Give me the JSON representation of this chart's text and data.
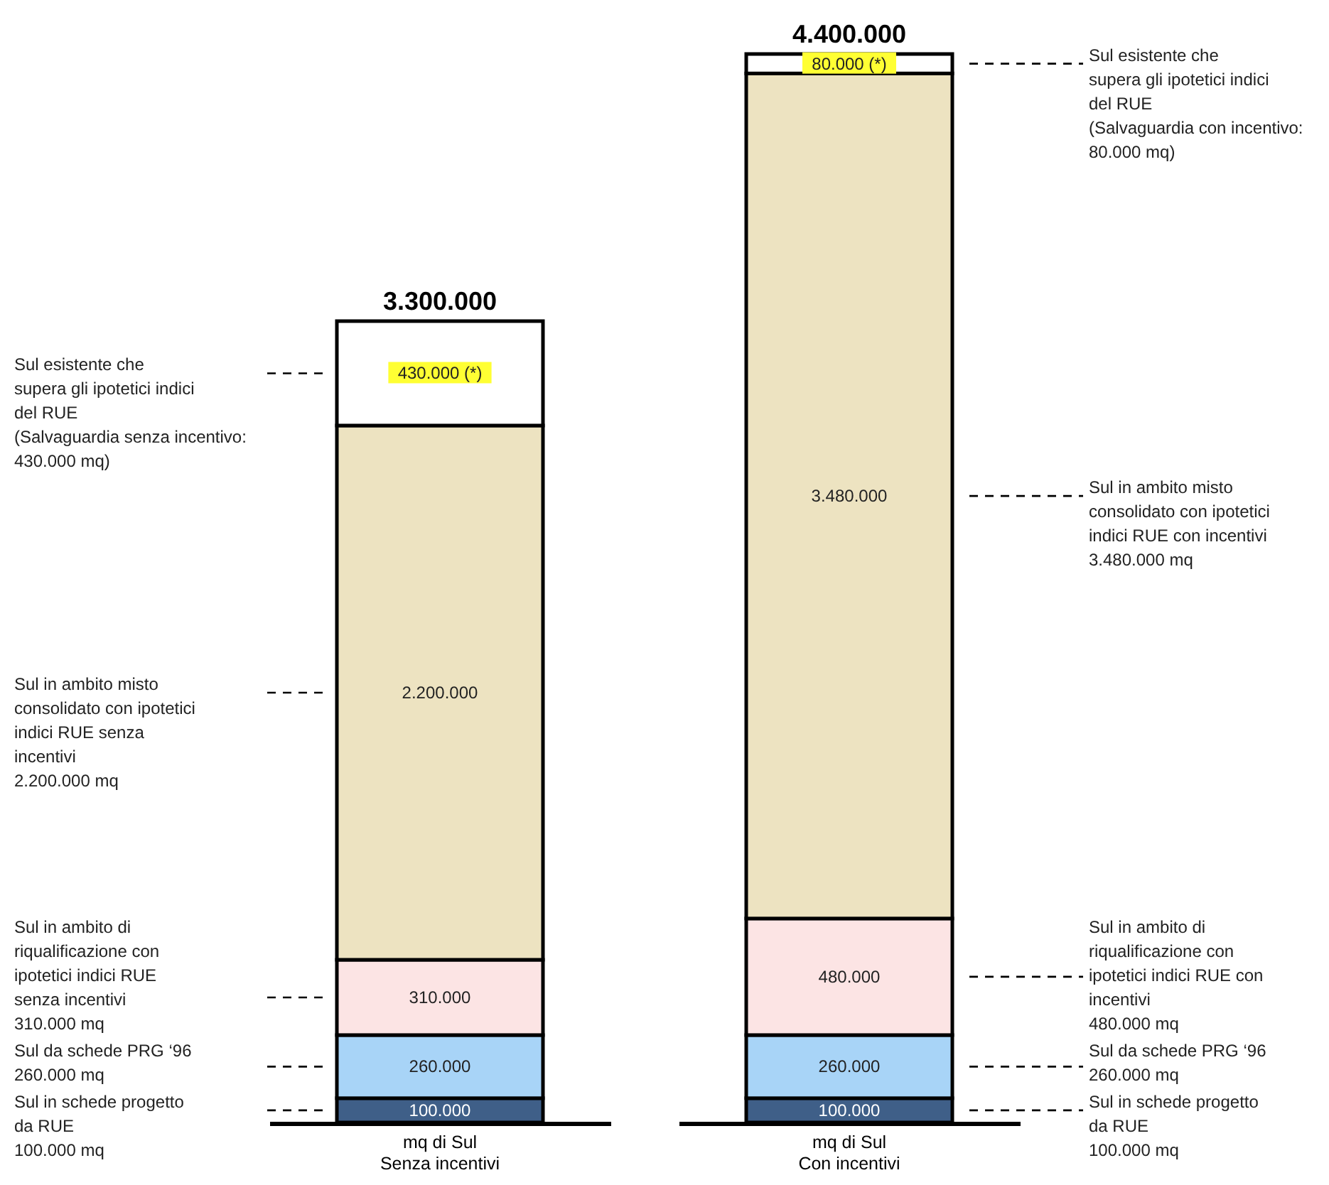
{
  "chart_data": {
    "type": "bar",
    "stacked": true,
    "categories": [
      "mq di Sul\nSenza incentivi",
      "mq di Sul\nCon incentivi"
    ],
    "series": [
      {
        "color": "#3f5f88",
        "values": [
          100000,
          100000
        ],
        "value_labels": [
          "100.000",
          "100.000"
        ]
      },
      {
        "color": "#a8d4f7",
        "values": [
          260000,
          260000
        ],
        "value_labels": [
          "260.000",
          "260.000"
        ]
      },
      {
        "color": "#fce4e4",
        "values": [
          310000,
          480000
        ],
        "value_labels": [
          "310.000",
          "480.000"
        ]
      },
      {
        "color": "#ede3c1",
        "values": [
          2200000,
          3480000
        ],
        "value_labels": [
          "2.200.000",
          "3.480.000"
        ]
      },
      {
        "color": "#ffffff",
        "values": [
          430000,
          80000
        ],
        "value_labels": [
          "430.000 (*)",
          "80.000 (*)"
        ]
      }
    ],
    "totals": [
      "3.300.000",
      "4.400.000"
    ],
    "annotations": [
      "Sul in schede progetto\nda RUE\n100.000 mq",
      "Sul da schede PRG ‘96\n260.000 mq",
      "Sul in ambito di\nriqualificazione con\nipotetici indici RUE\nsenza incentivi\n310.000 mq",
      "Sul in ambito misto\nconsolidato con ipotetici\nindici RUE senza\nincentivi\n2.200.000 mq",
      "Sul esistente che\nsupera gli ipotetici indici\ndel RUE\n(Salvaguardia senza incentivo:\n430.000 mq)",
      "Sul in schede progetto\nda RUE\n100.000 mq",
      "Sul da schede PRG ‘96\n260.000 mq",
      "Sul in ambito di\nriqualificazione con\nipotetici indici RUE con\nincentivi\n480.000 mq",
      "Sul in ambito misto\nconsolidato con ipotetici\nindici RUE con incentivi\n3.480.000 mq",
      "Sul esistente che\nsupera gli ipotetici indici\ndel RUE\n(Salvaguardia con incentivo:\n80.000 mq)"
    ]
  }
}
